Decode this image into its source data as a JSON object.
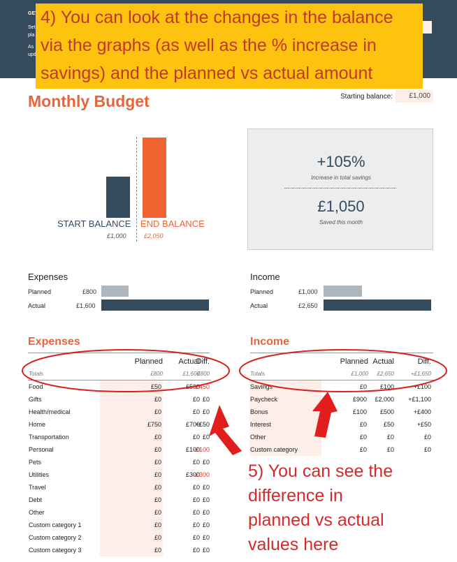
{
  "header": {
    "lines": [
      "GET",
      "Set",
      "pla",
      "As",
      "upd"
    ]
  },
  "callout_top": {
    "lines": [
      "4) You can look at the changes in the balance",
      "via the graphs (as well as the % increase in",
      "savings) and the planned vs actual amount"
    ]
  },
  "title": "Monthly Budget",
  "starting_balance": {
    "label": "Starting balance:",
    "value": "£1,000"
  },
  "balance_chart": {
    "start_label": "START BALANCE",
    "end_label": "END BALANCE",
    "start_value": "£1,000",
    "end_value": "£2,050",
    "colors": {
      "start": "#364a5e",
      "end": "#f06432"
    }
  },
  "chart_data": {
    "type": "bar",
    "categories": [
      "START BALANCE",
      "END BALANCE"
    ],
    "values": [
      1000,
      2050
    ],
    "ylim": [
      0,
      2050
    ]
  },
  "summary": {
    "increase_value": "+105%",
    "increase_label": "Increase in total savings",
    "saved_value": "£1,050",
    "saved_label": "Saved this month"
  },
  "expenses_overview": {
    "title": "Expenses",
    "planned_label": "Planned",
    "planned_value": "£800",
    "planned_amount": 800,
    "actual_label": "Actual",
    "actual_value": "£1,600",
    "actual_amount": 1600
  },
  "income_overview": {
    "title": "Income",
    "planned_label": "Planned",
    "planned_value": "£1,000",
    "planned_amount": 1000,
    "actual_label": "Actual",
    "actual_value": "£2,650",
    "actual_amount": 2650
  },
  "expenses_table": {
    "title": "Expenses",
    "columns": [
      "Planned",
      "Actual",
      "Diff."
    ],
    "totals": {
      "label": "Totals",
      "planned": "£800",
      "actual": "£1,600",
      "diff": "-£800"
    },
    "rows": [
      {
        "name": "Food",
        "planned": "£50",
        "actual": "£500",
        "diff": "-£450",
        "neg": true
      },
      {
        "name": "Gifts",
        "planned": "£0",
        "actual": "£0",
        "diff": "£0"
      },
      {
        "name": "Health/medical",
        "planned": "£0",
        "actual": "£0",
        "diff": "£0"
      },
      {
        "name": "Home",
        "planned": "£750",
        "actual": "£700",
        "diff": "+£50"
      },
      {
        "name": "Transportation",
        "planned": "£0",
        "actual": "£0",
        "diff": "£0"
      },
      {
        "name": "Personal",
        "planned": "£0",
        "actual": "£100",
        "diff": "-£100",
        "neg": true
      },
      {
        "name": "Pets",
        "planned": "£0",
        "actual": "£0",
        "diff": "£0"
      },
      {
        "name": "Utilities",
        "planned": "£0",
        "actual": "£300",
        "diff": "-£300",
        "neg": true
      },
      {
        "name": "Travel",
        "planned": "£0",
        "actual": "£0",
        "diff": "£0"
      },
      {
        "name": "Debt",
        "planned": "£0",
        "actual": "£0",
        "diff": "£0"
      },
      {
        "name": "Other",
        "planned": "£0",
        "actual": "£0",
        "diff": "£0"
      },
      {
        "name": "Custom category 1",
        "planned": "£0",
        "actual": "£0",
        "diff": "£0"
      },
      {
        "name": "Custom category 2",
        "planned": "£0",
        "actual": "£0",
        "diff": "£0"
      },
      {
        "name": "Custom category 3",
        "planned": "£0",
        "actual": "£0",
        "diff": "£0"
      }
    ]
  },
  "income_table": {
    "title": "Income",
    "columns": [
      "Planned",
      "Actual",
      "Diff."
    ],
    "totals": {
      "label": "Totals",
      "planned": "£1,000",
      "actual": "£2,650",
      "diff": "+£1,650"
    },
    "rows": [
      {
        "name": "Savings",
        "planned": "£0",
        "actual": "£100",
        "diff": "+£100"
      },
      {
        "name": "Paycheck",
        "planned": "£900",
        "actual": "£2,000",
        "diff": "+£1,100"
      },
      {
        "name": "Bonus",
        "planned": "£100",
        "actual": "£500",
        "diff": "+£400"
      },
      {
        "name": "Interest",
        "planned": "£0",
        "actual": "£50",
        "diff": "+£50"
      },
      {
        "name": "Other",
        "planned": "£0",
        "actual": "£0",
        "diff": "£0"
      },
      {
        "name": "Custom category",
        "planned": "£0",
        "actual": "£0",
        "diff": "£0"
      }
    ]
  },
  "callout_bottom": {
    "lines": [
      "5) You can see the",
      "difference in",
      "planned vs actual",
      "values here"
    ]
  },
  "colors": {
    "accent": "#e8643a",
    "navy": "#364a5e",
    "highlight": "#fdc30f",
    "annotation": "#d22b2b",
    "input_bg": "#fdeee8"
  }
}
